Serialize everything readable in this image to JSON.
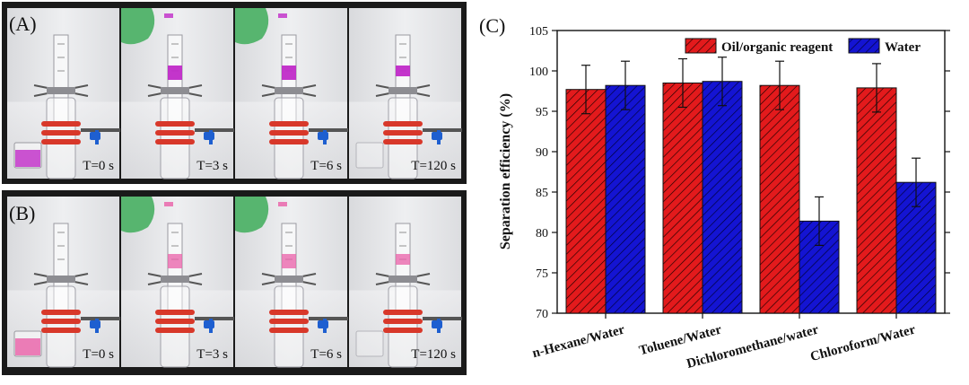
{
  "photos": {
    "panel_a_label": "(A)",
    "panel_b_label": "(B)",
    "panel_a_times": [
      "T=0 s",
      "T=3 s",
      "T=6 s",
      "T=120 s"
    ],
    "panel_b_times": [
      "T=0 s",
      "T=3 s",
      "T=6 s",
      "T=120 s"
    ],
    "colors": {
      "dye_a": "#c02ac8",
      "dye_b": "#ea5fa8",
      "clamp": "#d8382a",
      "valve": "#1e5fd0",
      "glove": "#57b56f"
    }
  },
  "chart_data": {
    "type": "bar",
    "panel_label": "(C)",
    "categories": [
      "n-Hexane/Water",
      "Toluene/Water",
      "Dichloromethane/water",
      "Chloroform/Water"
    ],
    "series": [
      {
        "name": "Oil/organic reagent",
        "values": [
          97.7,
          98.5,
          98.2,
          97.9
        ],
        "errors": [
          3.0,
          3.0,
          3.0,
          3.0
        ],
        "color": "#e31a1c",
        "pattern": "hatched"
      },
      {
        "name": "Water",
        "values": [
          98.2,
          98.7,
          81.4,
          86.2
        ],
        "errors": [
          3.0,
          3.0,
          3.0,
          3.0
        ],
        "color": "#1414d2",
        "pattern": "hatched"
      }
    ],
    "ylabel": "Separation efficiency (%)",
    "xlabel": "",
    "ylim": [
      70,
      105
    ],
    "yticks": [
      70,
      75,
      80,
      85,
      90,
      95,
      100,
      105
    ],
    "legend_position": "top",
    "grid": false
  }
}
